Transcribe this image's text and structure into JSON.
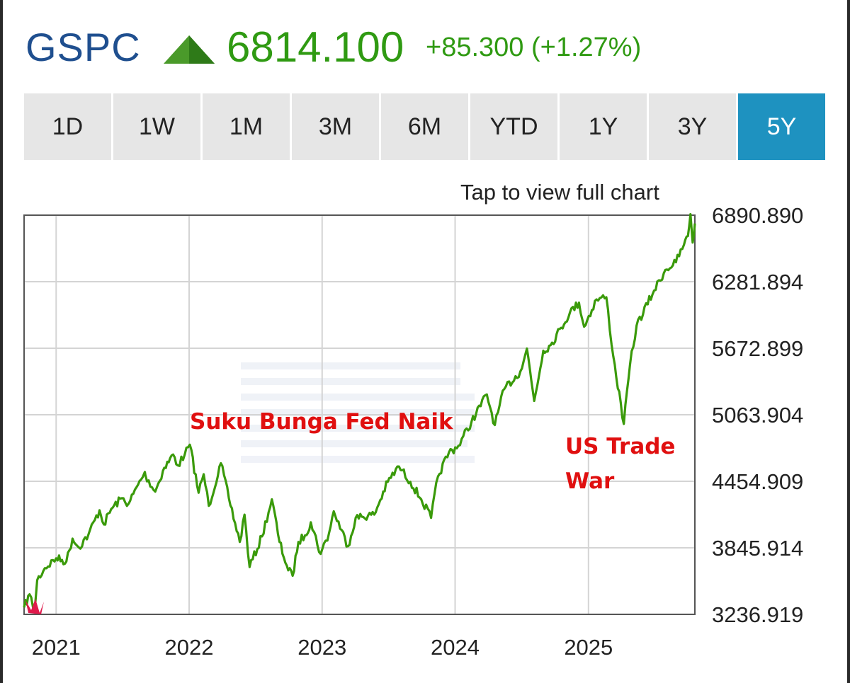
{
  "quote": {
    "symbol": "GSPC",
    "direction_icon": "up-triangle-icon",
    "price": "6814.100",
    "change": "+85.300 (+1.27%)",
    "color_up": "#2f9a12",
    "symbol_color": "#1f4f8f"
  },
  "ranges": {
    "items": [
      "1D",
      "1W",
      "1M",
      "3M",
      "6M",
      "YTD",
      "1Y",
      "3Y",
      "5Y"
    ],
    "selected": "5Y",
    "active_color": "#1e92c0"
  },
  "tap_label": "Tap to view full chart",
  "chart_data": {
    "type": "line",
    "line_color": "#3a9a0a",
    "grid": true,
    "y_ticks": [
      "6890.890",
      "6281.894",
      "5672.899",
      "5063.904",
      "4454.909",
      "3845.914",
      "3236.919"
    ],
    "ylim": [
      3236.919,
      6890.89
    ],
    "x_ticks": [
      "2021",
      "2022",
      "2023",
      "2024",
      "2025"
    ],
    "xlim": [
      "2020-10-05",
      "2025-10-20"
    ],
    "annotations": [
      {
        "text": "Suku Bunga Fed Naik",
        "x": "2022-01-01",
        "y": 5063.9
      },
      {
        "text": "US Trade",
        "x": "2025-04-01",
        "y": 4820
      },
      {
        "text": "War",
        "x": "2025-04-01",
        "y": 4560
      }
    ],
    "annotation_color": "#e01010",
    "series": [
      {
        "x": [
          "2020-10-05",
          "2020-10-20",
          "2020-11-03",
          "2020-11-10",
          "2020-12-01",
          "2021-01-01",
          "2021-01-29",
          "2021-02-15",
          "2021-03-04",
          "2021-03-31",
          "2021-04-30",
          "2021-05-12",
          "2021-06-01",
          "2021-06-30",
          "2021-07-19",
          "2021-08-31",
          "2021-09-03",
          "2021-09-30",
          "2021-10-21",
          "2021-11-18",
          "2021-12-01",
          "2021-12-20",
          "2022-01-03",
          "2022-01-27",
          "2022-02-10",
          "2022-02-24",
          "2022-03-29",
          "2022-04-20",
          "2022-05-20",
          "2022-06-02",
          "2022-06-16",
          "2022-07-20",
          "2022-08-16",
          "2022-09-06",
          "2022-09-30",
          "2022-10-12",
          "2022-10-28",
          "2022-11-15",
          "2022-12-01",
          "2022-12-28",
          "2023-01-20",
          "2023-02-02",
          "2023-03-13",
          "2023-04-03",
          "2023-05-24",
          "2023-06-30",
          "2023-07-31",
          "2023-08-31",
          "2023-09-30",
          "2023-10-27",
          "2023-11-15",
          "2023-12-15",
          "2024-01-10",
          "2024-02-15",
          "2024-03-28",
          "2024-04-19",
          "2024-05-15",
          "2024-06-28",
          "2024-07-16",
          "2024-08-05",
          "2024-08-30",
          "2024-09-19",
          "2024-10-18",
          "2024-11-11",
          "2024-12-06",
          "2024-12-20",
          "2025-01-23",
          "2025-02-19",
          "2025-03-10",
          "2025-04-08",
          "2025-04-25",
          "2025-05-13",
          "2025-06-30",
          "2025-07-31",
          "2025-08-29",
          "2025-09-20",
          "2025-10-01",
          "2025-10-08",
          "2025-10-14",
          "2025-10-20"
        ],
        "y": [
          3300,
          3420,
          3270,
          3550,
          3660,
          3750,
          3720,
          3930,
          3850,
          3970,
          4190,
          4060,
          4200,
          4300,
          4250,
          4530,
          4510,
          4360,
          4550,
          4700,
          4600,
          4700,
          4790,
          4350,
          4520,
          4230,
          4620,
          4300,
          3900,
          4150,
          3670,
          3950,
          4290,
          3900,
          3640,
          3590,
          3900,
          3960,
          4080,
          3790,
          3980,
          4180,
          3860,
          4120,
          4150,
          4450,
          4590,
          4450,
          4290,
          4120,
          4500,
          4720,
          4780,
          5000,
          5250,
          4970,
          5300,
          5460,
          5670,
          5190,
          5650,
          5700,
          5860,
          6000,
          6090,
          5870,
          6120,
          6140,
          5600,
          4980,
          5520,
          5880,
          6200,
          6390,
          6460,
          6620,
          6700,
          6900,
          6640,
          6815
        ]
      }
    ]
  }
}
